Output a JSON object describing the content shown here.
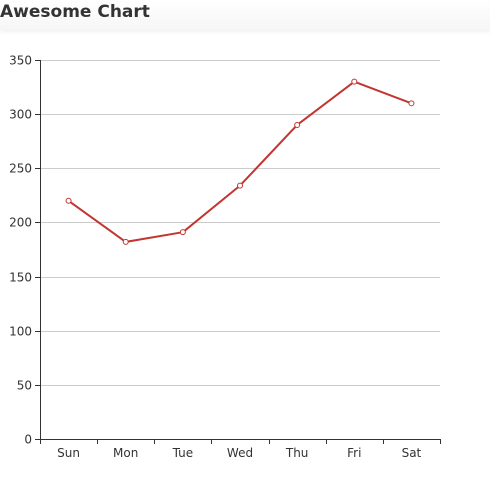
{
  "chart_data": {
    "type": "line",
    "title": "Awesome Chart",
    "categories": [
      "Sun",
      "Mon",
      "Tue",
      "Wed",
      "Thu",
      "Fri",
      "Sat"
    ],
    "series": [
      {
        "values": [
          220,
          182,
          191,
          234,
          290,
          330,
          310
        ]
      }
    ],
    "ylim": [
      0,
      350
    ],
    "yticks": [
      0,
      50,
      100,
      150,
      200,
      250,
      300,
      350
    ],
    "grid": true,
    "colors": {
      "line": "#c23531",
      "grid": "#cccccc",
      "axis": "#333333"
    }
  }
}
